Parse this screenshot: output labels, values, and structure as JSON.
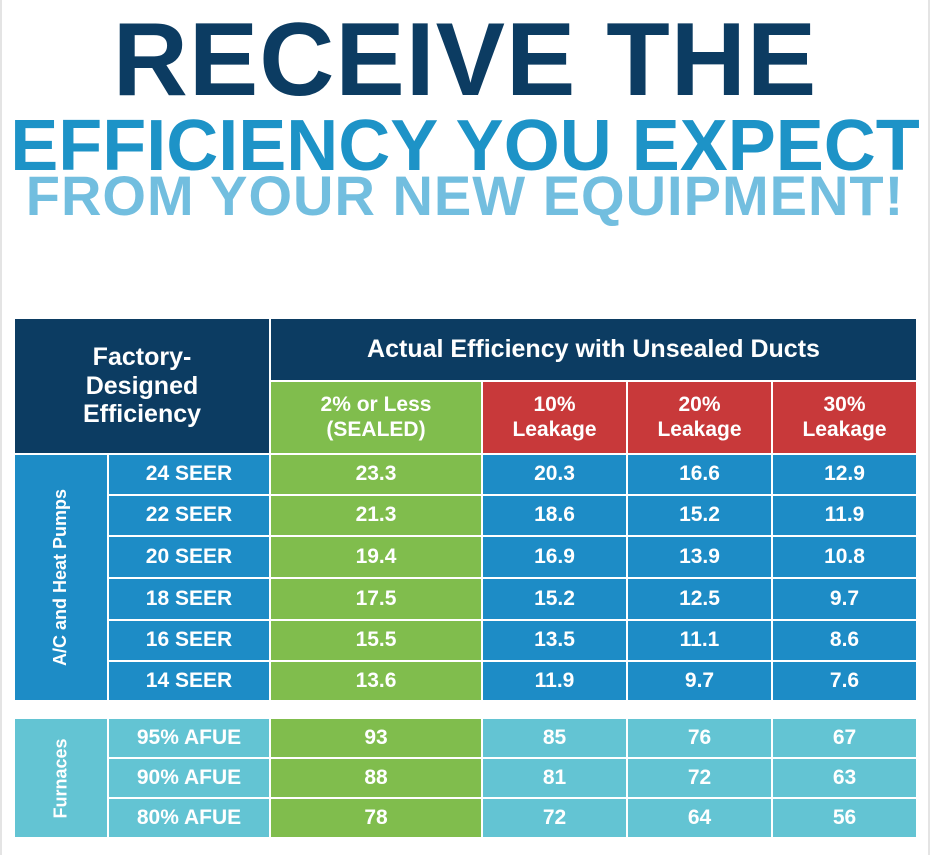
{
  "headline": {
    "line1": "RECEIVE THE",
    "line2": "EFFICIENCY YOU EXPECT",
    "line3": "FROM YOUR NEW EQUIPMENT!"
  },
  "colors": {
    "navy": "#0c3c62",
    "headline_blue": "#1d93c7",
    "headline_light_blue": "#72bedf",
    "green": "#80bd4d",
    "red": "#c8393a",
    "ac_blue": "#1d8cc6",
    "furnace_blue": "#63c4d3"
  },
  "table": {
    "corner_header": "Factory-\nDesigned\nEfficiency",
    "group_header": "Actual Efficiency with Unsealed Ducts",
    "columns": [
      "2% or Less\n(SEALED)",
      "10%\nLeakage",
      "20%\nLeakage",
      "30%\nLeakage"
    ],
    "groups": [
      {
        "label": "A/C and Heat Pumps",
        "rows": [
          {
            "label": "24 SEER",
            "values": [
              "23.3",
              "20.3",
              "16.6",
              "12.9"
            ]
          },
          {
            "label": "22 SEER",
            "values": [
              "21.3",
              "18.6",
              "15.2",
              "11.9"
            ]
          },
          {
            "label": "20 SEER",
            "values": [
              "19.4",
              "16.9",
              "13.9",
              "10.8"
            ]
          },
          {
            "label": "18 SEER",
            "values": [
              "17.5",
              "15.2",
              "12.5",
              "9.7"
            ]
          },
          {
            "label": "16 SEER",
            "values": [
              "15.5",
              "13.5",
              "11.1",
              "8.6"
            ]
          },
          {
            "label": "14 SEER",
            "values": [
              "13.6",
              "11.9",
              "9.7",
              "7.6"
            ]
          }
        ]
      },
      {
        "label": "Furnaces",
        "rows": [
          {
            "label": "95% AFUE",
            "values": [
              "93",
              "85",
              "76",
              "67"
            ]
          },
          {
            "label": "90% AFUE",
            "values": [
              "88",
              "81",
              "72",
              "63"
            ]
          },
          {
            "label": "80% AFUE",
            "values": [
              "78",
              "72",
              "64",
              "56"
            ]
          }
        ]
      }
    ]
  }
}
